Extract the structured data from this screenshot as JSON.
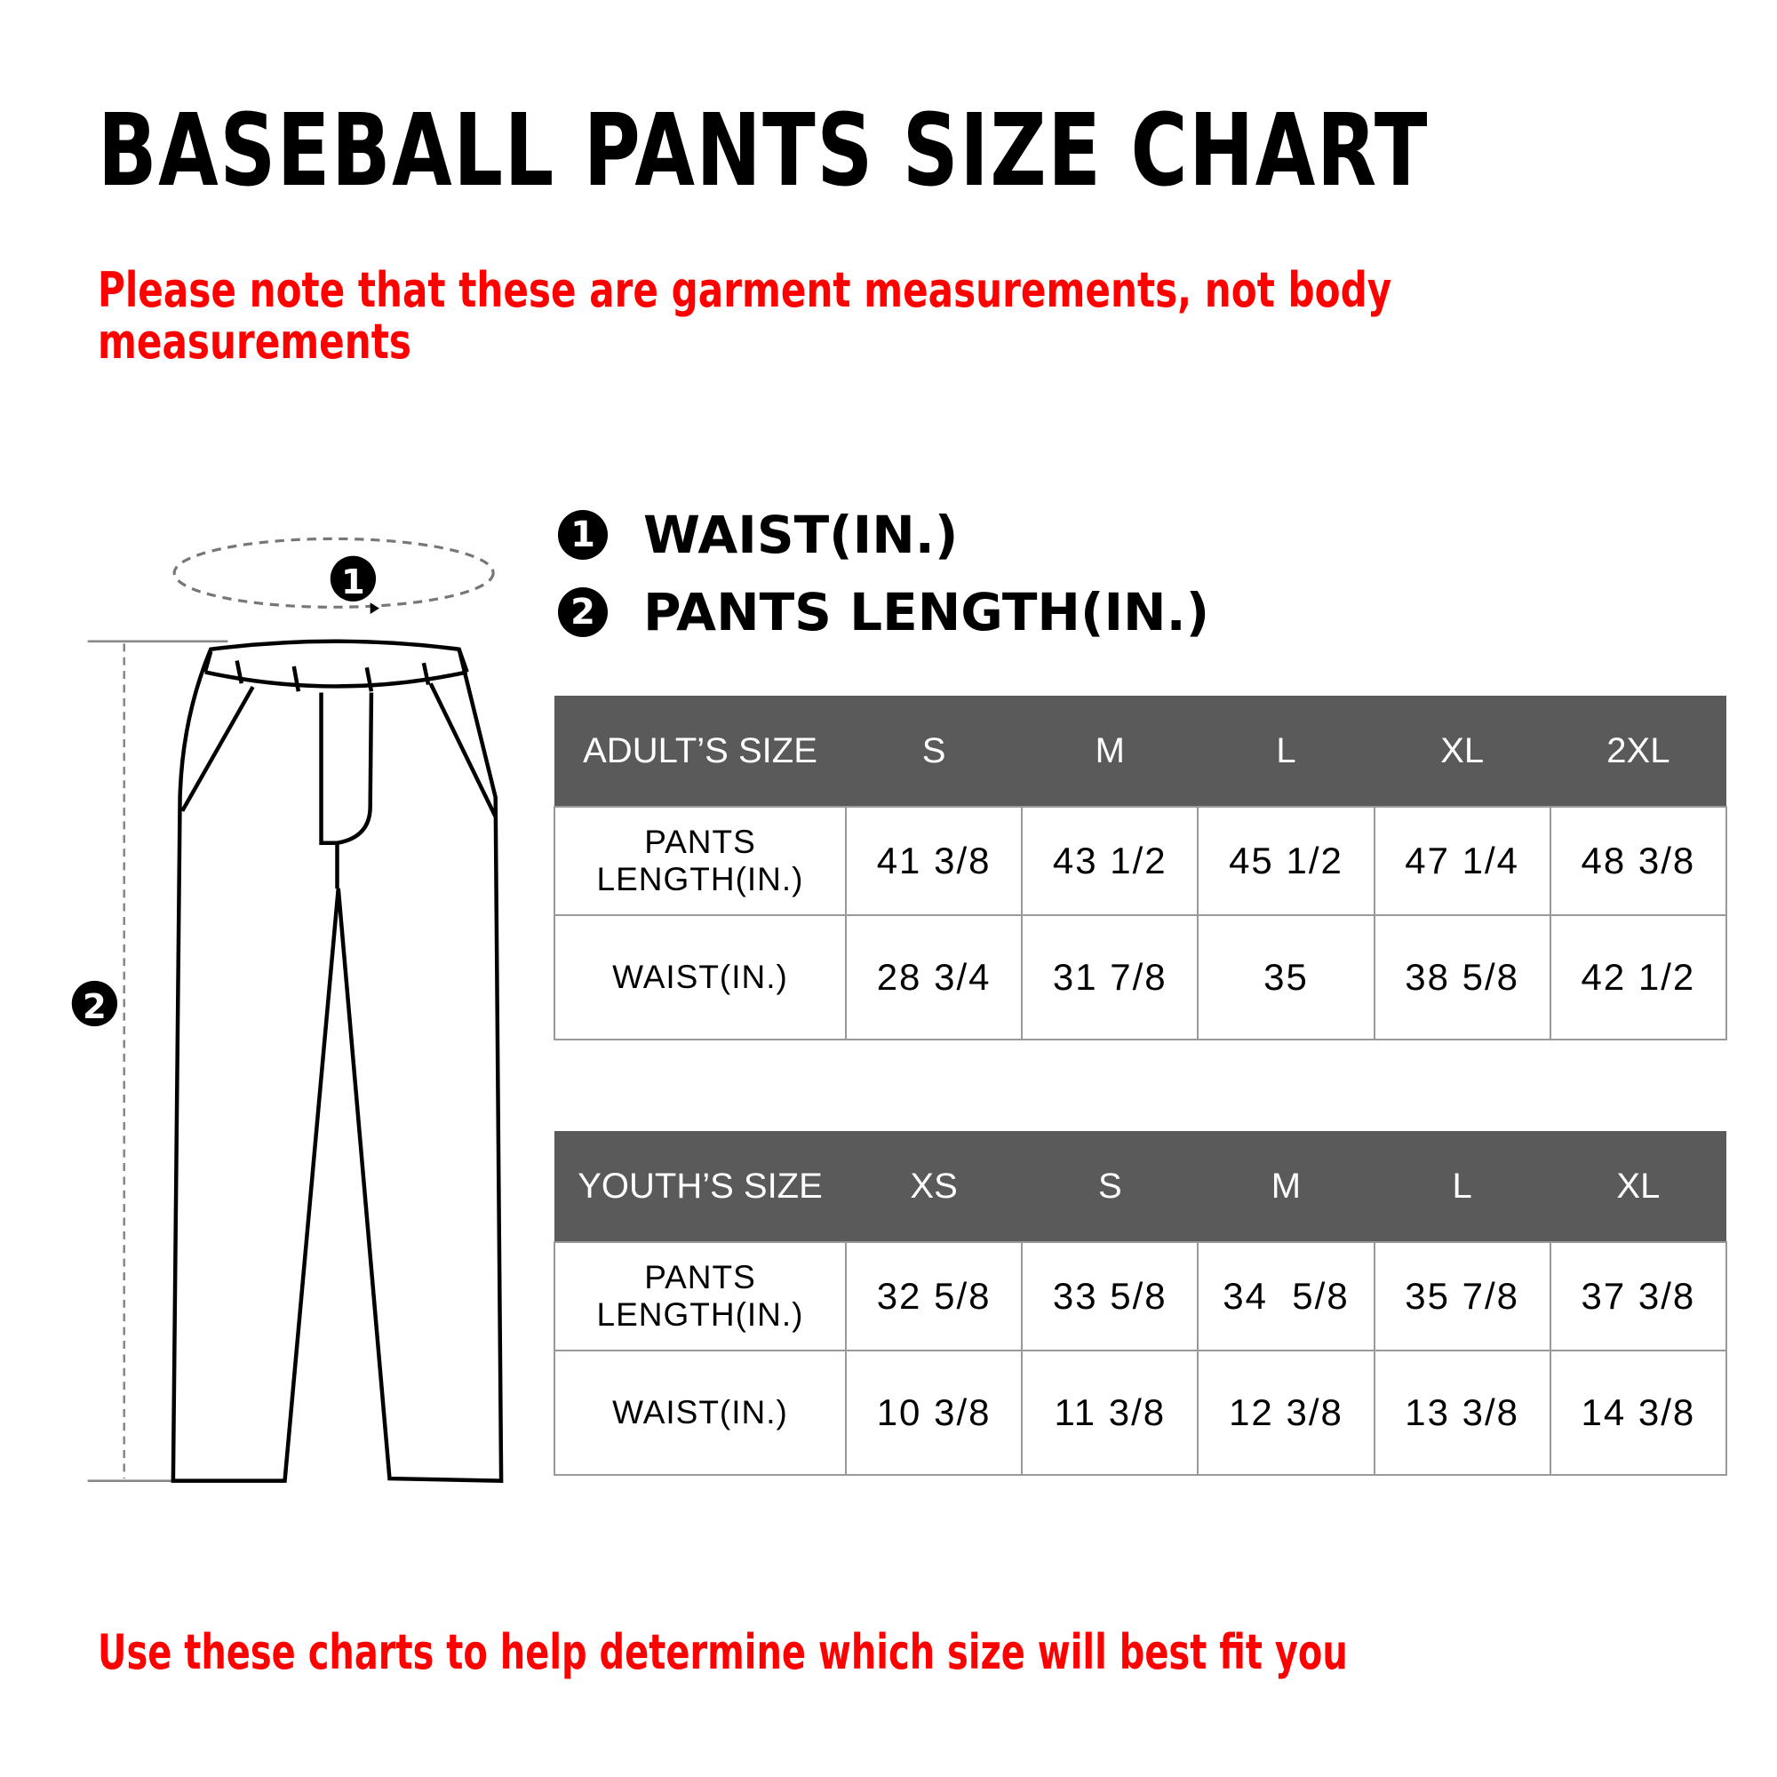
{
  "title": "BASEBALL PANTS SIZE CHART",
  "note": "Please note that these are garment measurements, not body measurements",
  "legend": [
    {
      "num": "1",
      "label": "WAIST(IN.)"
    },
    {
      "num": "2",
      "label": "PANTS LENGTH(IN.)"
    }
  ],
  "adult": {
    "header": "ADULT’S SIZE",
    "sizes": [
      "S",
      "M",
      "L",
      "XL",
      "2XL"
    ],
    "rows": [
      {
        "label": "PANTS LENGTH(IN.)",
        "values": [
          "41 3/8",
          "43 1/2",
          "45 1/2",
          "47 1/4",
          "48 3/8"
        ]
      },
      {
        "label": "WAIST(IN.)",
        "values": [
          "28 3/4",
          "31 7/8",
          "35",
          "38 5/8",
          "42 1/2"
        ]
      }
    ]
  },
  "youth": {
    "header": "YOUTH’S SIZE",
    "sizes": [
      "XS",
      "S",
      "M",
      "L",
      "XL"
    ],
    "rows": [
      {
        "label": "PANTS LENGTH(IN.)",
        "values": [
          "32 5/8",
          "33 5/8",
          "34  5/8",
          "35 7/8",
          "37 3/8"
        ]
      },
      {
        "label": "WAIST(IN.)",
        "values": [
          "10 3/8",
          "11 3/8",
          "12 3/8",
          "13 3/8",
          "14 3/8"
        ]
      }
    ]
  },
  "diagram_markers": [
    "1",
    "2"
  ],
  "footer": "Use these charts to help determine which size will best fit you",
  "colors": {
    "accent": "#ff0000",
    "header_bg": "#5a5a5a"
  }
}
